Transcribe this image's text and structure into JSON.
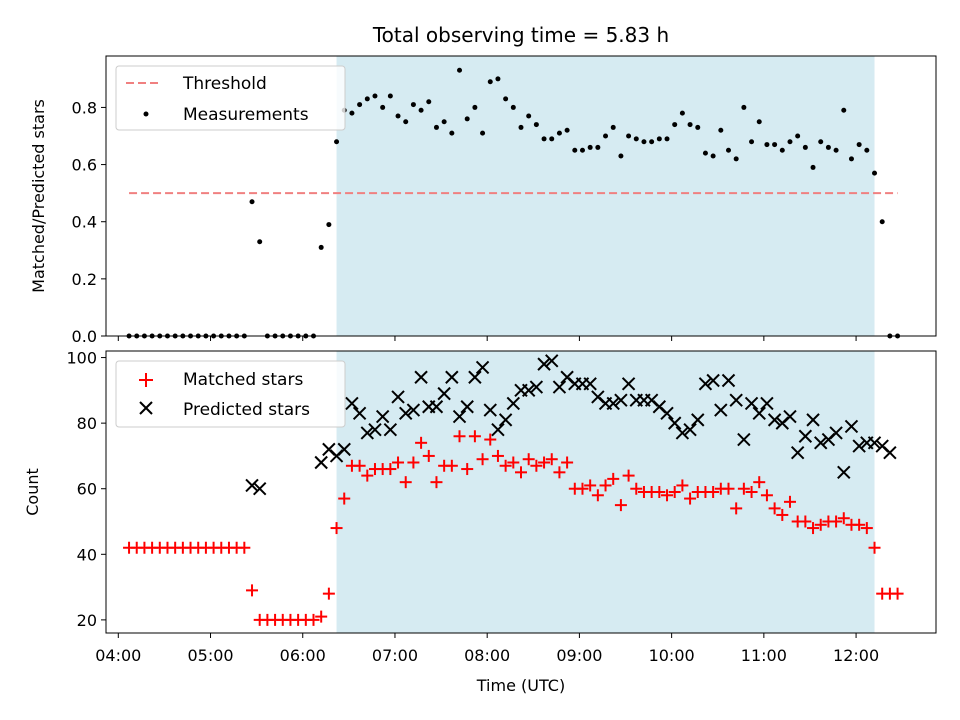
{
  "chart_data": [
    {
      "type": "scatter",
      "title": "Total observing time = 5.83 h",
      "xlabel": "",
      "ylabel": "Matched/Predicted stars",
      "xlim": [
        "03:52",
        "12:52"
      ],
      "ylim": [
        0,
        0.98
      ],
      "xticks": [],
      "yticks": [
        "0.0",
        "0.2",
        "0.4",
        "0.6",
        "0.8"
      ],
      "shaded_region": {
        "start": "06:22",
        "end": "12:12",
        "color": "#add8e6"
      },
      "legend_position": "upper-left",
      "threshold": {
        "name": "Threshold",
        "y": 0.5,
        "x_start": "04:07",
        "x_end": "12:27",
        "color": "#f08080",
        "style": "dashed"
      },
      "series": [
        {
          "name": "Measurements",
          "color": "#000000",
          "marker": "dot",
          "x": [
            "04:07",
            "04:12",
            "04:17",
            "04:22",
            "04:27",
            "04:32",
            "04:37",
            "04:42",
            "04:47",
            "04:52",
            "04:57",
            "05:02",
            "05:07",
            "05:12",
            "05:17",
            "05:22",
            "05:27",
            "05:32",
            "05:37",
            "05:42",
            "05:47",
            "05:52",
            "05:57",
            "06:02",
            "06:07",
            "06:12",
            "06:17",
            "06:22",
            "06:27",
            "06:32",
            "06:37",
            "06:42",
            "06:47",
            "06:52",
            "06:57",
            "07:02",
            "07:07",
            "07:12",
            "07:17",
            "07:22",
            "07:27",
            "07:32",
            "07:37",
            "07:42",
            "07:47",
            "07:52",
            "07:57",
            "08:02",
            "08:07",
            "08:12",
            "08:17",
            "08:22",
            "08:27",
            "08:32",
            "08:37",
            "08:42",
            "08:47",
            "08:52",
            "08:57",
            "09:02",
            "09:07",
            "09:12",
            "09:17",
            "09:22",
            "09:27",
            "09:32",
            "09:37",
            "09:42",
            "09:47",
            "09:52",
            "09:57",
            "10:02",
            "10:07",
            "10:12",
            "10:17",
            "10:22",
            "10:27",
            "10:32",
            "10:37",
            "10:42",
            "10:47",
            "10:52",
            "10:57",
            "11:02",
            "11:07",
            "11:12",
            "11:17",
            "11:22",
            "11:27",
            "11:32",
            "11:37",
            "11:42",
            "11:47",
            "11:52",
            "11:57",
            "12:02",
            "12:07",
            "12:12",
            "12:17",
            "12:22",
            "12:27"
          ],
          "y": [
            0,
            0,
            0,
            0,
            0,
            0,
            0,
            0,
            0,
            0,
            0,
            0,
            0,
            0,
            0,
            0,
            0.47,
            0.33,
            0,
            0,
            0,
            0,
            0,
            0,
            0,
            0.31,
            0.39,
            0.68,
            0.79,
            0.78,
            0.81,
            0.83,
            0.84,
            0.8,
            0.84,
            0.77,
            0.75,
            0.81,
            0.79,
            0.82,
            0.73,
            0.75,
            0.71,
            0.93,
            0.76,
            0.8,
            0.71,
            0.89,
            0.9,
            0.83,
            0.8,
            0.73,
            0.77,
            0.74,
            0.69,
            0.69,
            0.71,
            0.72,
            0.65,
            0.65,
            0.66,
            0.66,
            0.7,
            0.73,
            0.63,
            0.7,
            0.69,
            0.68,
            0.68,
            0.69,
            0.69,
            0.74,
            0.78,
            0.74,
            0.73,
            0.64,
            0.63,
            0.72,
            0.65,
            0.62,
            0.8,
            0.68,
            0.75,
            0.67,
            0.67,
            0.65,
            0.68,
            0.7,
            0.66,
            0.59,
            0.68,
            0.66,
            0.65,
            0.79,
            0.62,
            0.67,
            0.65,
            0.57,
            0.4,
            0,
            0
          ]
        }
      ]
    },
    {
      "type": "scatter",
      "title": "",
      "xlabel": "Time (UTC)",
      "ylabel": "Count",
      "xlim": [
        "03:52",
        "12:52"
      ],
      "ylim": [
        16,
        102
      ],
      "xticks": [
        "04:00",
        "05:00",
        "06:00",
        "07:00",
        "08:00",
        "09:00",
        "10:00",
        "11:00",
        "12:00"
      ],
      "yticks": [
        "20",
        "40",
        "60",
        "80",
        "100"
      ],
      "shaded_region": {
        "start": "06:22",
        "end": "12:12",
        "color": "#add8e6"
      },
      "legend_position": "upper-left",
      "series": [
        {
          "name": "Matched stars",
          "color": "#ff0000",
          "marker": "plus",
          "x": [
            "04:07",
            "04:12",
            "04:17",
            "04:22",
            "04:27",
            "04:32",
            "04:37",
            "04:42",
            "04:47",
            "04:52",
            "04:57",
            "05:02",
            "05:07",
            "05:12",
            "05:17",
            "05:22",
            "05:27",
            "05:32",
            "05:37",
            "05:42",
            "05:47",
            "05:52",
            "05:57",
            "06:02",
            "06:07",
            "06:12",
            "06:17",
            "06:22",
            "06:27",
            "06:32",
            "06:37",
            "06:42",
            "06:47",
            "06:52",
            "06:57",
            "07:02",
            "07:07",
            "07:12",
            "07:17",
            "07:22",
            "07:27",
            "07:32",
            "07:37",
            "07:42",
            "07:47",
            "07:52",
            "07:57",
            "08:02",
            "08:07",
            "08:12",
            "08:17",
            "08:22",
            "08:27",
            "08:32",
            "08:37",
            "08:42",
            "08:47",
            "08:52",
            "08:57",
            "09:02",
            "09:07",
            "09:12",
            "09:17",
            "09:22",
            "09:27",
            "09:32",
            "09:37",
            "09:42",
            "09:47",
            "09:52",
            "09:57",
            "10:02",
            "10:07",
            "10:12",
            "10:17",
            "10:22",
            "10:27",
            "10:32",
            "10:37",
            "10:42",
            "10:47",
            "10:52",
            "10:57",
            "11:02",
            "11:07",
            "11:12",
            "11:17",
            "11:22",
            "11:27",
            "11:32",
            "11:37",
            "11:42",
            "11:47",
            "11:52",
            "11:57",
            "12:02",
            "12:07",
            "12:12",
            "12:17",
            "12:22",
            "12:27"
          ],
          "y": [
            42,
            42,
            42,
            42,
            42,
            42,
            42,
            42,
            42,
            42,
            42,
            42,
            42,
            42,
            42,
            42,
            29,
            20,
            20,
            20,
            20,
            20,
            20,
            20,
            20,
            21,
            28,
            48,
            57,
            67,
            67,
            64,
            66,
            66,
            66,
            68,
            62,
            68,
            74,
            70,
            62,
            67,
            67,
            76,
            66,
            76,
            69,
            75,
            70,
            67,
            68,
            65,
            69,
            67,
            68,
            69,
            65,
            68,
            60,
            60,
            61,
            58,
            61,
            63,
            55,
            64,
            60,
            59,
            59,
            59,
            58,
            59,
            61,
            57,
            59,
            59,
            59,
            60,
            60,
            54,
            60,
            59,
            62,
            58,
            54,
            52,
            56,
            50,
            50,
            48,
            49,
            50,
            50,
            51,
            49,
            49,
            48,
            42,
            28,
            28,
            28
          ]
        },
        {
          "name": "Predicted stars",
          "color": "#000000",
          "marker": "x",
          "x": [
            "05:27",
            "05:32",
            "06:12",
            "06:17",
            "06:22",
            "06:27",
            "06:32",
            "06:37",
            "06:42",
            "06:47",
            "06:52",
            "06:57",
            "07:02",
            "07:07",
            "07:12",
            "07:17",
            "07:22",
            "07:27",
            "07:32",
            "07:37",
            "07:42",
            "07:47",
            "07:52",
            "07:57",
            "08:02",
            "08:07",
            "08:12",
            "08:17",
            "08:22",
            "08:27",
            "08:32",
            "08:37",
            "08:42",
            "08:47",
            "08:52",
            "08:57",
            "09:02",
            "09:07",
            "09:12",
            "09:17",
            "09:22",
            "09:27",
            "09:32",
            "09:37",
            "09:42",
            "09:47",
            "09:52",
            "09:57",
            "10:02",
            "10:07",
            "10:12",
            "10:17",
            "10:22",
            "10:27",
            "10:32",
            "10:37",
            "10:42",
            "10:47",
            "10:52",
            "10:57",
            "11:02",
            "11:07",
            "11:12",
            "11:17",
            "11:22",
            "11:27",
            "11:32",
            "11:37",
            "11:42",
            "11:47",
            "11:52",
            "11:57",
            "12:02",
            "12:07",
            "12:12",
            "12:17",
            "12:22"
          ],
          "y": [
            61,
            60,
            68,
            72,
            70,
            72,
            86,
            83,
            77,
            78,
            82,
            78,
            88,
            83,
            84,
            94,
            85,
            85,
            89,
            94,
            82,
            85,
            94,
            97,
            84,
            78,
            81,
            86,
            90,
            90,
            91,
            98,
            99,
            91,
            94,
            92,
            92,
            92,
            88,
            86,
            86,
            87,
            92,
            87,
            87,
            87,
            85,
            83,
            80,
            77,
            78,
            81,
            92,
            93,
            84,
            93,
            87,
            75,
            86,
            83,
            86,
            81,
            80,
            82,
            71,
            76,
            81,
            74,
            75,
            77,
            65,
            79,
            73,
            74,
            74,
            73,
            71
          ]
        }
      ]
    }
  ]
}
